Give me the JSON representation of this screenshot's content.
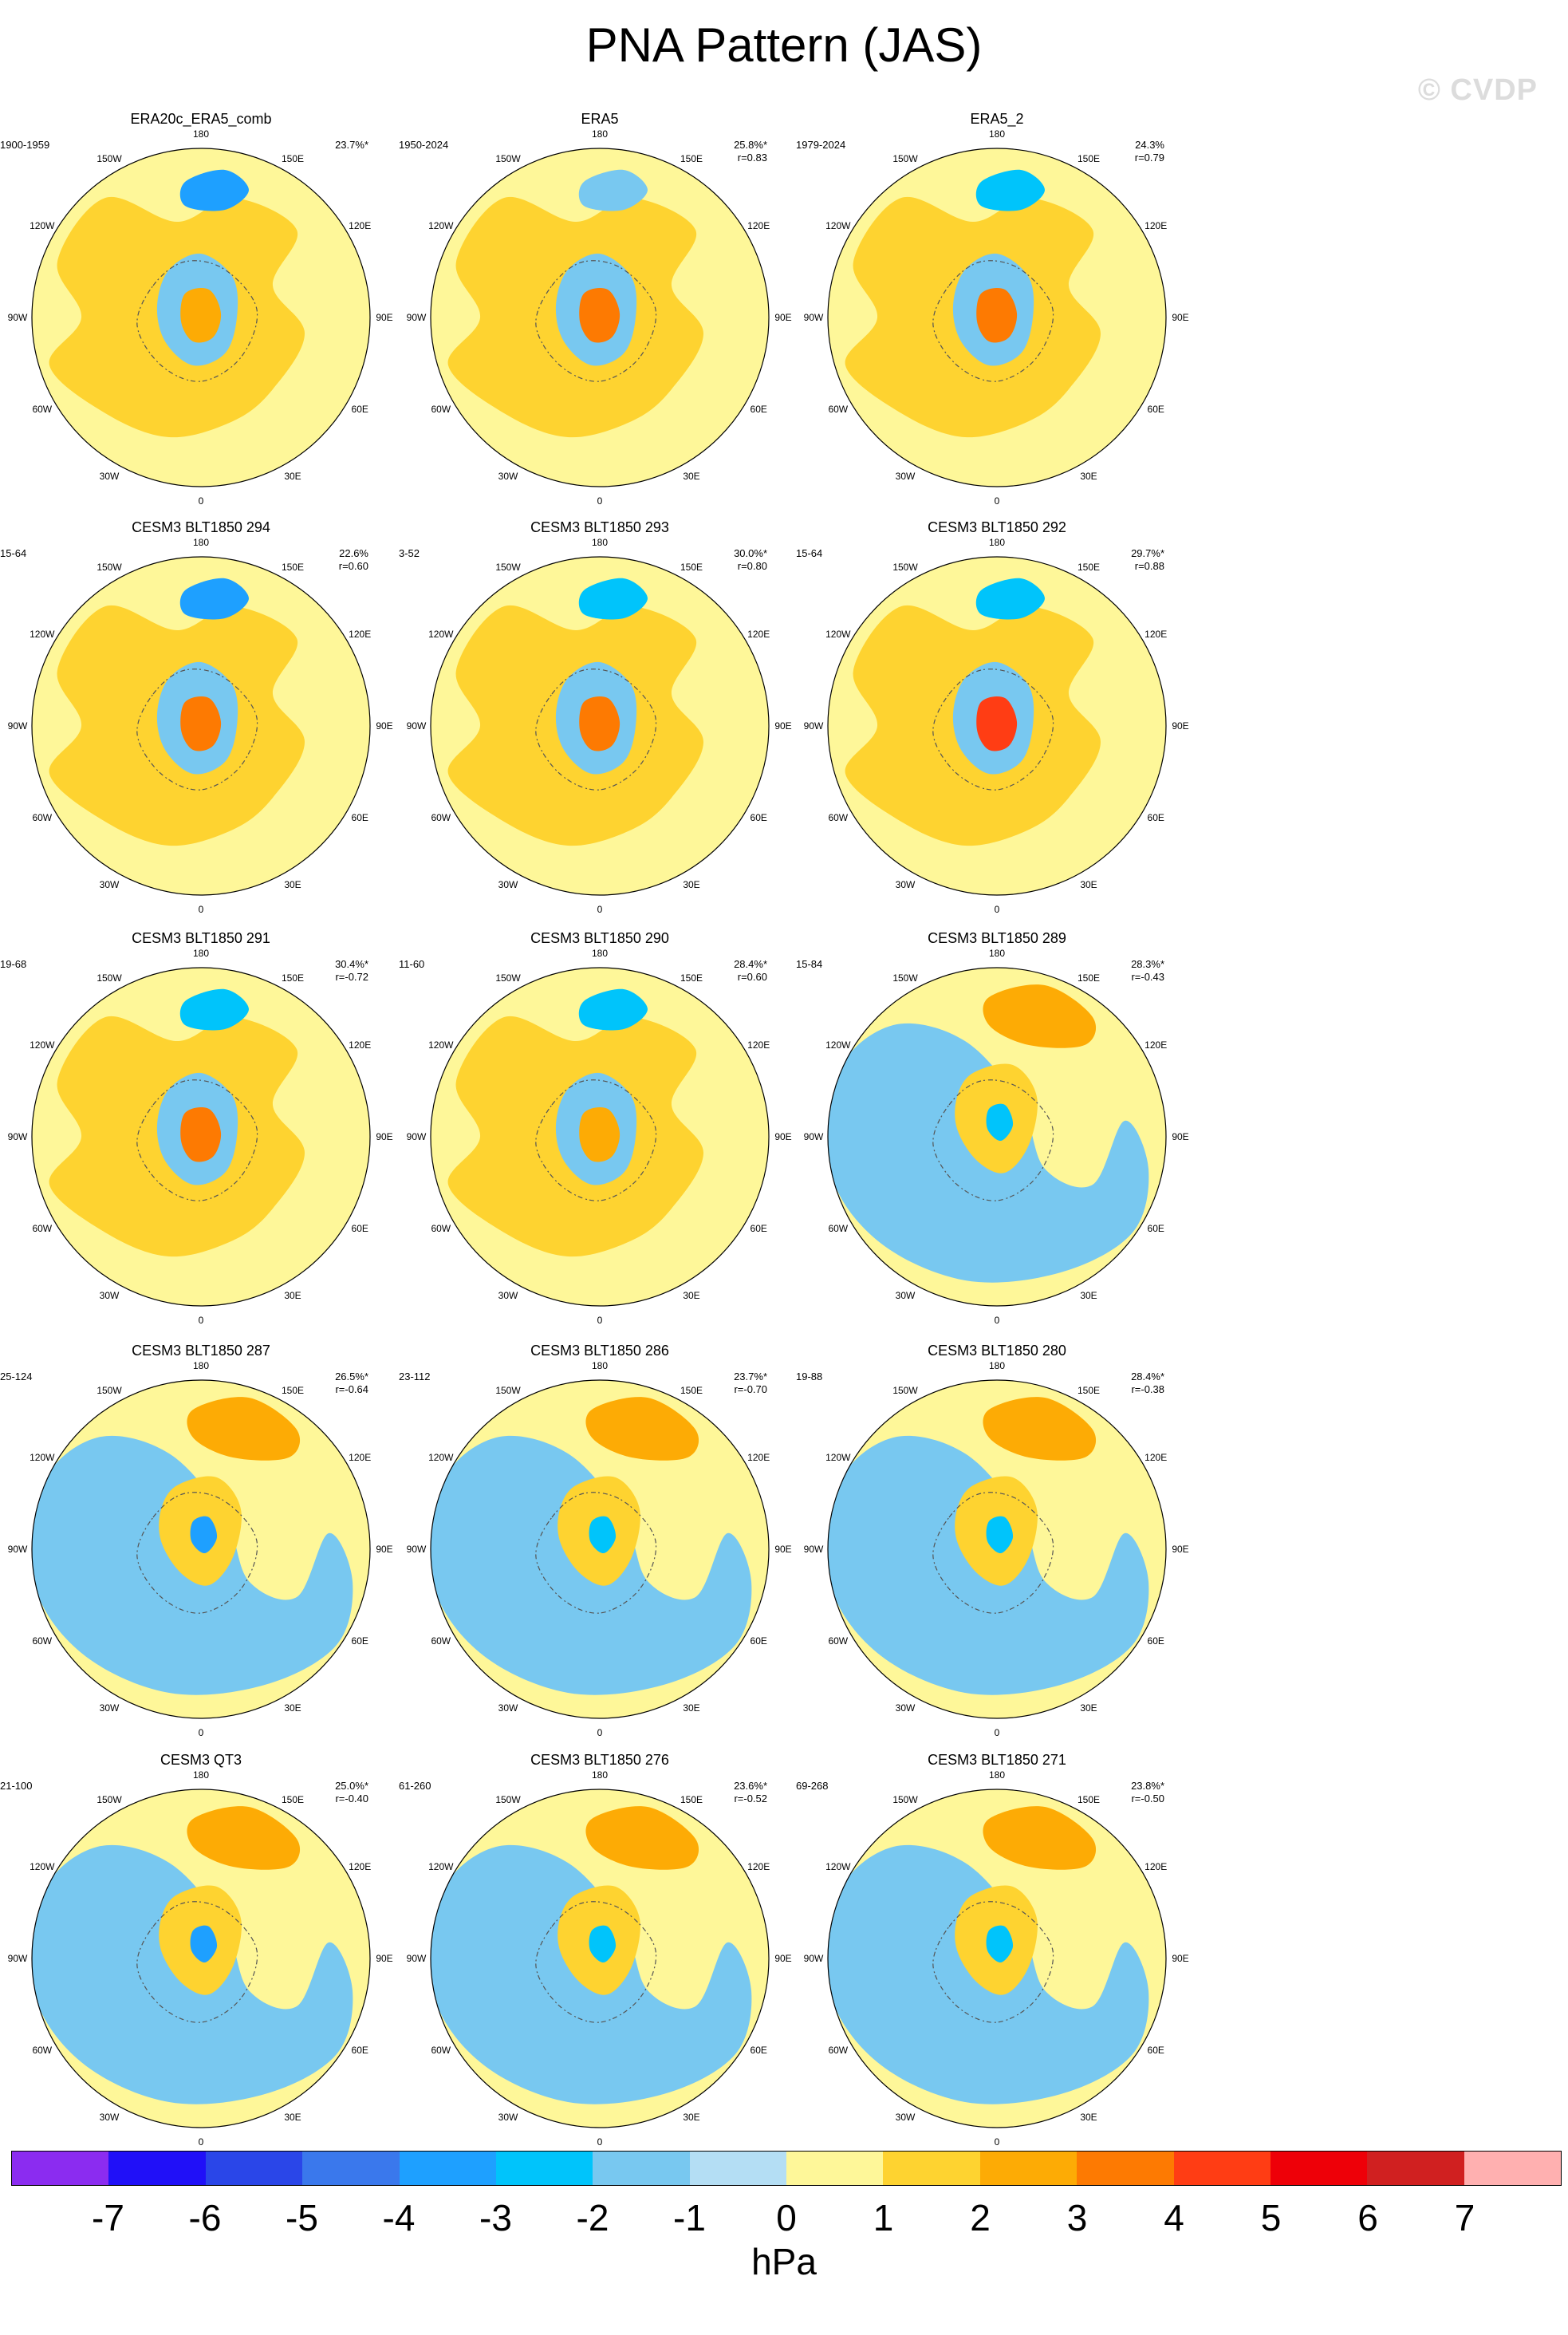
{
  "title": "PNA Pattern (JAS)",
  "watermark": "© CVDP",
  "map_labels": {
    "lon": [
      {
        "text": "180",
        "angle": 180
      },
      {
        "text": "150E",
        "angle": 150
      },
      {
        "text": "120E",
        "angle": 120
      },
      {
        "text": "90E",
        "angle": 90
      },
      {
        "text": "60E",
        "angle": 60
      },
      {
        "text": "30E",
        "angle": 30
      },
      {
        "text": "0",
        "angle": 0
      },
      {
        "text": "30W",
        "angle": -30
      },
      {
        "text": "60W",
        "angle": -60
      },
      {
        "text": "90W",
        "angle": -90
      },
      {
        "text": "120W",
        "angle": -120
      },
      {
        "text": "150W",
        "angle": -150
      }
    ]
  },
  "panels": [
    {
      "title": "ERA20c_ERA5_comb",
      "period": "1900-1959",
      "pct": "23.7%*",
      "corr": "",
      "pattern": "ref",
      "anom": [
        -3,
        -1,
        1,
        2
      ]
    },
    {
      "title": "ERA5",
      "period": "1950-2024",
      "pct": "25.8%*",
      "corr": "r=0.83",
      "pattern": "ref",
      "anom": [
        -1,
        -1,
        1,
        3
      ]
    },
    {
      "title": "ERA5_2",
      "period": "1979-2024",
      "pct": "24.3%",
      "corr": "r=0.79",
      "pattern": "ref",
      "anom": [
        -2,
        -1,
        1,
        3
      ]
    },
    {
      "title": "CESM3 BLT1850 294",
      "period": "15-64",
      "pct": "22.6%",
      "corr": "r=0.60",
      "pattern": "ref",
      "anom": [
        -3,
        -1,
        1,
        3
      ]
    },
    {
      "title": "CESM3 BLT1850 293",
      "period": "3-52",
      "pct": "30.0%*",
      "corr": "r=0.80",
      "pattern": "ref",
      "anom": [
        -2,
        -1,
        1,
        3
      ]
    },
    {
      "title": "CESM3 BLT1850 292",
      "period": "15-64",
      "pct": "29.7%*",
      "corr": "r=0.88",
      "pattern": "ref",
      "anom": [
        -2,
        -1,
        1,
        4
      ]
    },
    {
      "title": "CESM3 BLT1850 291",
      "period": "19-68",
      "pct": "30.4%*",
      "corr": "r=-0.72",
      "pattern": "ref",
      "anom": [
        -2,
        -1,
        1,
        3
      ]
    },
    {
      "title": "CESM3 BLT1850 290",
      "period": "11-60",
      "pct": "28.4%*",
      "corr": "r=0.60",
      "pattern": "ref",
      "anom": [
        -2,
        -1,
        1,
        2
      ]
    },
    {
      "title": "CESM3 BLT1850 289",
      "period": "15-84",
      "pct": "28.3%*",
      "corr": "r=-0.43",
      "pattern": "inv",
      "anom": [
        2,
        1,
        -1,
        -2
      ]
    },
    {
      "title": "CESM3 BLT1850 287",
      "period": "25-124",
      "pct": "26.5%*",
      "corr": "r=-0.64",
      "pattern": "inv",
      "anom": [
        2,
        1,
        -1,
        -3
      ]
    },
    {
      "title": "CESM3 BLT1850 286",
      "period": "23-112",
      "pct": "23.7%*",
      "corr": "r=-0.70",
      "pattern": "inv",
      "anom": [
        2,
        1,
        -1,
        -2
      ]
    },
    {
      "title": "CESM3 BLT1850 280",
      "period": "19-88",
      "pct": "28.4%*",
      "corr": "r=-0.38",
      "pattern": "inv",
      "anom": [
        2,
        1,
        -1,
        -2
      ]
    },
    {
      "title": "CESM3 QT3",
      "period": "21-100",
      "pct": "25.0%*",
      "corr": "r=-0.40",
      "pattern": "inv",
      "anom": [
        2,
        1,
        -1,
        -3
      ]
    },
    {
      "title": "CESM3 BLT1850 276",
      "period": "61-260",
      "pct": "23.6%*",
      "corr": "r=-0.52",
      "pattern": "inv",
      "anom": [
        2,
        1,
        -1,
        -2
      ]
    },
    {
      "title": "CESM3 BLT1850 271",
      "period": "69-268",
      "pct": "23.8%*",
      "corr": "r=-0.50",
      "pattern": "inv",
      "anom": [
        2,
        1,
        -1,
        -2
      ]
    }
  ],
  "colorbar": {
    "colors": [
      "#8b2cf0",
      "#2010f8",
      "#2a46e8",
      "#3a78ec",
      "#1ea0ff",
      "#00c4fb",
      "#78c8f0",
      "#b4def4",
      "#fef799",
      "#fed330",
      "#fdab05",
      "#fd7a02",
      "#ff3d14",
      "#ee0008",
      "#d02020",
      "#ffb0b0"
    ],
    "ticks": [
      "-7",
      "-6",
      "-5",
      "-4",
      "-3",
      "-2",
      "-1",
      "0",
      "1",
      "2",
      "3",
      "4",
      "5",
      "6",
      "7"
    ],
    "units": "hPa"
  },
  "level_colors": {
    "-7": "#8b2cf0",
    "-6": "#2010f8",
    "-5": "#2a46e8",
    "-4": "#3a78ec",
    "-3": "#1ea0ff",
    "-2": "#00c4fb",
    "-1": "#78c8f0",
    "0n": "#b4def4",
    "0p": "#fef799",
    "1": "#fed330",
    "2": "#fdab05",
    "3": "#fd7a02",
    "4": "#ff3d14"
  }
}
